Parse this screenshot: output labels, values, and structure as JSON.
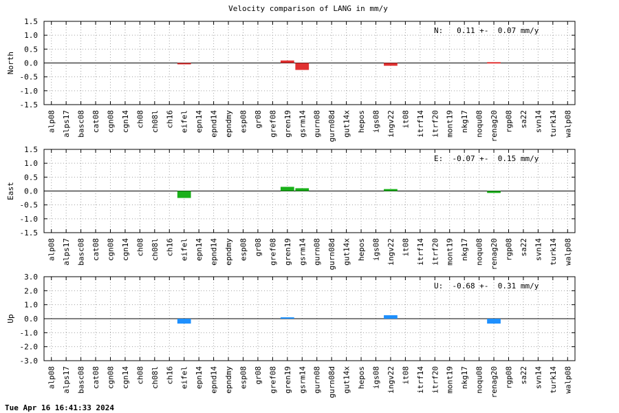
{
  "footer": {
    "timestamp": "Tue Apr 16 16:41:33 2024"
  },
  "chart_data": {
    "type": "bar",
    "title": "Velocity comparison of LANG in mm/y",
    "categories": [
      "alp08",
      "alps17",
      "basc08",
      "cat08",
      "cgn08",
      "cgn14",
      "ch08",
      "ch08l",
      "ch16",
      "eifel",
      "epn14",
      "epnd14",
      "epndmy",
      "esp08",
      "gr08",
      "gref08",
      "gren19",
      "gsrm14",
      "gurn08",
      "gurn08d",
      "gut14x",
      "hepos",
      "igs08",
      "ingv22",
      "it08",
      "itrf14",
      "itrf20",
      "mont19",
      "nkg17",
      "noqu08",
      "renag20",
      "rgp08",
      "sa22",
      "svn14",
      "turk14",
      "walp08"
    ],
    "grid": true,
    "panels": [
      {
        "name": "North",
        "ylabel": "North",
        "color": "#e03030",
        "ylim": [
          -1.5,
          1.5
        ],
        "yticks": [
          -1.5,
          -1.0,
          -0.5,
          0.0,
          0.5,
          1.0,
          1.5
        ],
        "tick_labels": [
          "-1.5",
          "-1.0",
          "-0.5",
          "0.0",
          "0.5",
          "1.0",
          "1.5"
        ],
        "summary": "N:   0.11 +-  0.07 mm/y",
        "values": [
          null,
          null,
          null,
          null,
          null,
          null,
          null,
          null,
          null,
          -0.02,
          null,
          null,
          null,
          null,
          null,
          null,
          0.09,
          -0.25,
          null,
          null,
          null,
          null,
          null,
          -0.1,
          null,
          null,
          null,
          null,
          null,
          null,
          0.03,
          null,
          null,
          null,
          null,
          null
        ]
      },
      {
        "name": "East",
        "ylabel": "East",
        "color": "#1ab01a",
        "ylim": [
          -1.5,
          1.5
        ],
        "yticks": [
          -1.5,
          -1.0,
          -0.5,
          0.0,
          0.5,
          1.0,
          1.5
        ],
        "tick_labels": [
          "-1.5",
          "-1.0",
          "-0.5",
          "0.0",
          "0.5",
          "1.0",
          "1.5"
        ],
        "summary": "E:  -0.07 +-  0.15 mm/y",
        "values": [
          null,
          null,
          null,
          null,
          null,
          null,
          null,
          null,
          null,
          -0.25,
          null,
          null,
          null,
          null,
          null,
          null,
          0.15,
          0.1,
          null,
          null,
          null,
          null,
          null,
          0.07,
          null,
          null,
          null,
          null,
          null,
          null,
          -0.07,
          null,
          null,
          null,
          null,
          null
        ]
      },
      {
        "name": "Up",
        "ylabel": "Up",
        "color": "#1e90ff",
        "ylim": [
          -3.0,
          3.0
        ],
        "yticks": [
          -3.0,
          -2.0,
          -1.0,
          0.0,
          1.0,
          2.0,
          3.0
        ],
        "tick_labels": [
          "-3.0",
          "-2.0",
          "-1.0",
          "0.0",
          "1.0",
          "2.0",
          "3.0"
        ],
        "summary": "U:  -0.68 +-  0.31 mm/y",
        "values": [
          null,
          null,
          null,
          null,
          null,
          null,
          null,
          null,
          null,
          -0.35,
          null,
          null,
          null,
          null,
          null,
          null,
          0.1,
          null,
          null,
          null,
          null,
          null,
          null,
          0.25,
          null,
          null,
          null,
          null,
          null,
          null,
          -0.35,
          null,
          null,
          null,
          null,
          null
        ]
      }
    ]
  }
}
